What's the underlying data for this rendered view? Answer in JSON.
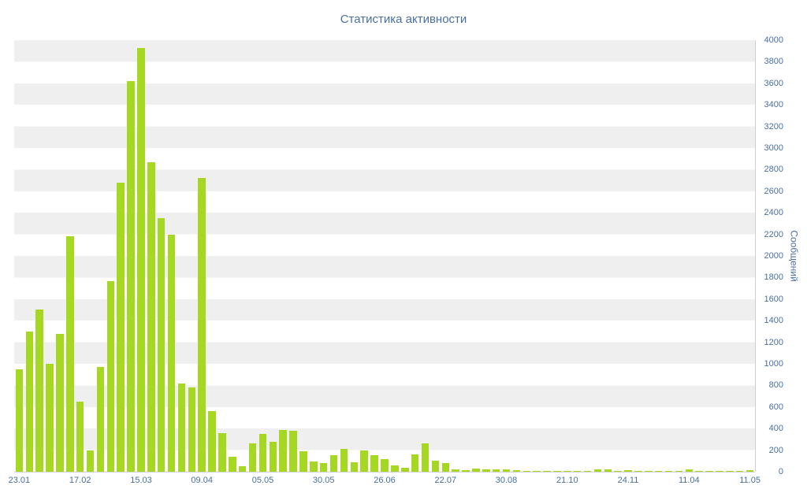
{
  "title": "Статистика активности",
  "chart_data": {
    "type": "bar",
    "title": "Статистика активности",
    "xlabel": "",
    "ylabel": "Сообщений",
    "ylim": [
      0,
      4000
    ],
    "ytick_step": 200,
    "yticks": [
      0,
      200,
      400,
      600,
      800,
      1000,
      1200,
      1400,
      1600,
      1800,
      2000,
      2200,
      2400,
      2600,
      2800,
      3000,
      3200,
      3400,
      3600,
      3800,
      4000
    ],
    "xtick_labels": [
      "23.01",
      "17.02",
      "15.03",
      "09.04",
      "05.05",
      "30.05",
      "26.06",
      "22.07",
      "30.08",
      "21.10",
      "24.11",
      "11.04",
      "11.05"
    ],
    "xtick_indices": [
      0,
      6,
      12,
      18,
      24,
      30,
      36,
      42,
      48,
      54,
      60,
      66,
      72
    ],
    "values": [
      950,
      1300,
      1500,
      1000,
      1280,
      2180,
      650,
      200,
      970,
      1770,
      2680,
      3620,
      3930,
      2870,
      2350,
      2200,
      820,
      780,
      2720,
      560,
      360,
      140,
      50,
      260,
      350,
      280,
      390,
      380,
      190,
      95,
      80,
      150,
      210,
      90,
      200,
      150,
      120,
      60,
      40,
      160,
      260,
      100,
      80,
      25,
      15,
      30,
      20,
      25,
      20,
      15,
      10,
      8,
      10,
      5,
      6,
      5,
      8,
      20,
      25,
      10,
      15,
      10,
      8,
      5,
      4,
      5,
      20,
      8,
      6,
      5,
      8,
      5,
      12
    ],
    "legend": "none",
    "grid": "horizontal striped bands every 200",
    "y_axis_position": "right",
    "bar_color": "#a6d723",
    "stripe_color": "#efefef",
    "label_color": "#4a6f9f",
    "axis_line_color": "#d0d0d0",
    "background_color": "#ffffff"
  }
}
